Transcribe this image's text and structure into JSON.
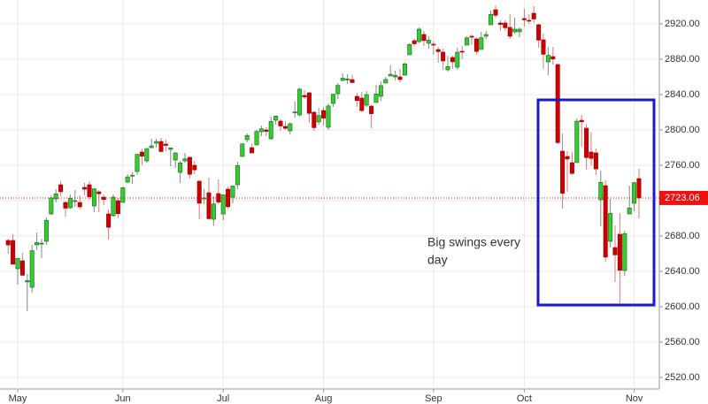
{
  "chart_data": {
    "type": "candlestick",
    "categories": [
      null,
      null,
      "May",
      null,
      null,
      null,
      null,
      null,
      null,
      null,
      null,
      null,
      null,
      null,
      null,
      null,
      null,
      null,
      null,
      null,
      null,
      null,
      null,
      null,
      "Jun",
      null,
      null,
      null,
      null,
      null,
      null,
      null,
      null,
      null,
      null,
      null,
      null,
      null,
      null,
      null,
      null,
      null,
      null,
      null,
      null,
      "Jul",
      null,
      null,
      null,
      null,
      null,
      null,
      null,
      null,
      null,
      null,
      null,
      null,
      null,
      null,
      null,
      null,
      null,
      null,
      null,
      null,
      "Aug",
      null,
      null,
      null,
      null,
      null,
      null,
      null,
      null,
      null,
      null,
      null,
      null,
      null,
      null,
      null,
      null,
      null,
      null,
      null,
      null,
      null,
      null,
      "Sep",
      null,
      null,
      null,
      null,
      null,
      null,
      null,
      null,
      null,
      null,
      null,
      null,
      null,
      null,
      null,
      null,
      null,
      null,
      "Oct",
      null,
      null,
      null,
      null,
      null,
      null,
      null,
      null,
      null,
      null,
      null,
      null,
      null,
      null,
      null,
      null,
      null,
      null,
      null,
      null,
      null,
      null,
      "Nov",
      null
    ],
    "open": [
      2675,
      2675,
      2643,
      2652,
      2628,
      2622,
      2670,
      2671,
      2674,
      2705,
      2722,
      2738,
      2718,
      2712,
      2719,
      2718,
      2735,
      2738,
      2714,
      2730,
      2724,
      2705,
      2703,
      2720,
      2718,
      2741,
      2748,
      2753,
      2775,
      2765,
      2780,
      2785,
      2787,
      2784,
      2778,
      2766,
      2752,
      2765,
      2769,
      2760,
      2742,
      2722,
      2729,
      2699,
      2728,
      2705,
      2733,
      2724,
      2738,
      2770,
      2789,
      2780,
      2783,
      2798,
      2800,
      2790,
      2811,
      2810,
      2804,
      2799,
      2820,
      2817,
      2839,
      2842,
      2820,
      2809,
      2822,
      2803,
      2830,
      2841,
      2856,
      2857,
      2857,
      2838,
      2836,
      2828,
      2827,
      2831,
      2838,
      2853,
      2861,
      2860,
      2860,
      2862,
      2885,
      2901,
      2900,
      2908,
      2898,
      2897,
      2891,
      2888,
      2868,
      2882,
      2871,
      2889,
      2896,
      2906,
      2903,
      2891,
      2906,
      2919,
      2936,
      2921,
      2921,
      2916,
      2911,
      2911,
      2926,
      2924,
      2932,
      2919,
      2902,
      2877,
      2883,
      2874,
      2776,
      2770,
      2763,
      2763,
      2811,
      2802,
      2775,
      2774,
      2721,
      2737,
      2674,
      2667,
      2682,
      2641,
      2705,
      2717,
      2745
    ],
    "high": [
      2677,
      2682,
      2655,
      2661,
      2637,
      2670,
      2684,
      2677,
      2701,
      2726,
      2733,
      2742,
      2719,
      2727,
      2732,
      2726,
      2740,
      2742,
      2734,
      2732,
      2727,
      2710,
      2727,
      2723,
      2736,
      2750,
      2752,
      2773,
      2779,
      2779,
      2790,
      2790,
      2791,
      2789,
      2780,
      2775,
      2765,
      2774,
      2770,
      2765,
      2743,
      2733,
      2746,
      2725,
      2744,
      2727,
      2736,
      2737,
      2764,
      2785,
      2796,
      2785,
      2800,
      2805,
      2803,
      2815,
      2816,
      2812,
      2810,
      2809,
      2832,
      2848,
      2845,
      2843,
      2821,
      2825,
      2826,
      2830,
      2841,
      2853,
      2864,
      2863,
      2862,
      2842,
      2843,
      2844,
      2828,
      2851,
      2855,
      2860,
      2873,
      2867,
      2869,
      2876,
      2898,
      2903,
      2916,
      2912,
      2906,
      2900,
      2894,
      2892,
      2884,
      2884,
      2893,
      2895,
      2906,
      2908,
      2905,
      2911,
      2912,
      2935,
      2941,
      2924,
      2924,
      2931,
      2927,
      2916,
      2937,
      2931,
      2940,
      2920,
      2909,
      2894,
      2894,
      2875,
      2796,
      2776,
      2775,
      2813,
      2817,
      2807,
      2797,
      2779,
      2754,
      2743,
      2722,
      2692,
      2706,
      2686,
      2737,
      2741,
      2756
    ],
    "low": [
      2660,
      2648,
      2625,
      2635,
      2595,
      2616,
      2664,
      2655,
      2670,
      2704,
      2718,
      2725,
      2702,
      2711,
      2713,
      2710,
      2726,
      2721,
      2707,
      2707,
      2715,
      2676,
      2702,
      2700,
      2718,
      2740,
      2739,
      2749,
      2760,
      2763,
      2779,
      2780,
      2775,
      2776,
      2759,
      2757,
      2740,
      2763,
      2745,
      2750,
      2699,
      2716,
      2699,
      2692,
      2716,
      2698,
      2711,
      2717,
      2733,
      2770,
      2786,
      2774,
      2783,
      2793,
      2793,
      2789,
      2806,
      2799,
      2800,
      2795,
      2814,
      2815,
      2835,
      2808,
      2799,
      2806,
      2805,
      2800,
      2826,
      2835,
      2855,
      2852,
      2853,
      2826,
      2820,
      2826,
      2802,
      2831,
      2833,
      2853,
      2861,
      2856,
      2854,
      2862,
      2885,
      2895,
      2898,
      2895,
      2892,
      2885,
      2876,
      2868,
      2866,
      2869,
      2868,
      2880,
      2896,
      2896,
      2885,
      2891,
      2903,
      2919,
      2927,
      2912,
      2912,
      2903,
      2909,
      2905,
      2917,
      2920,
      2921,
      2893,
      2869,
      2862,
      2874,
      2784,
      2711,
      2730,
      2749,
      2763,
      2781,
      2755,
      2760,
      2749,
      2691,
      2651,
      2667,
      2628,
      2604,
      2635,
      2705,
      2708,
      2700
    ],
    "close": [
      2669.9,
      2648.1,
      2654.8,
      2635.7,
      2629.7,
      2663.4,
      2672.6,
      2671.9,
      2697.8,
      2723.1,
      2727.7,
      2730.1,
      2711.5,
      2722.5,
      2720.1,
      2713.0,
      2733.0,
      2724.4,
      2733.3,
      2727.8,
      2721.3,
      2689.9,
      2724.0,
      2705.3,
      2734.6,
      2746.9,
      2748.8,
      2772.4,
      2770.4,
      2779.0,
      2782.0,
      2786.9,
      2775.6,
      2782.5,
      2779.7,
      2773.9,
      2762.6,
      2767.3,
      2749.8,
      2754.9,
      2717.1,
      2723.1,
      2699.6,
      2716.3,
      2718.4,
      2726.7,
      2713.2,
      2736.6,
      2759.8,
      2784.2,
      2793.8,
      2774.0,
      2798.3,
      2801.3,
      2798.4,
      2809.6,
      2815.6,
      2804.5,
      2801.8,
      2806.98,
      2820.4,
      2846.1,
      2837.4,
      2818.8,
      2802.6,
      2816.3,
      2813.4,
      2827.2,
      2840.4,
      2850.4,
      2858.5,
      2857.7,
      2853.6,
      2833.3,
      2821.9,
      2839.96,
      2818.4,
      2840.7,
      2850.1,
      2857.1,
      2862.96,
      2861.8,
      2856.98,
      2874.7,
      2896.7,
      2897.5,
      2914.0,
      2901.1,
      2901.5,
      2896.7,
      2888.6,
      2878.1,
      2871.7,
      2877.1,
      2887.9,
      2888.9,
      2904.2,
      2904.98,
      2888.8,
      2904.3,
      2907.95,
      2930.75,
      2929.7,
      2919.4,
      2915.6,
      2905.97,
      2914.0,
      2913.98,
      2924.6,
      2923.4,
      2925.5,
      2901.6,
      2885.6,
      2884.4,
      2880.3,
      2785.7,
      2728.4,
      2767.1,
      2750.8,
      2809.9,
      2809.2,
      2768.8,
      2767.8,
      2755.9,
      2740.7,
      2656.1,
      2705.6,
      2658.7,
      2641.3,
      2682.6,
      2711.7,
      2740.4,
      2723.06
    ],
    "up_color": "#33cc33",
    "down_color": "#cc0000",
    "last_value": 2723.06,
    "last_color": "#ee1111",
    "annotation": [
      "Big swings every",
      "day"
    ],
    "annotation_color": "#1a1acc",
    "ylim": [
      2507,
      2947
    ],
    "yticks": [
      {
        "value": 2520,
        "label": "2520.00"
      },
      {
        "value": 2560,
        "label": "2560.00"
      },
      {
        "value": 2600,
        "label": "2600.00"
      },
      {
        "value": 2640,
        "label": "2640.00"
      },
      {
        "value": 2680,
        "label": "2680.00"
      },
      {
        "value": 2720,
        "label": "2720.00"
      },
      {
        "value": 2760,
        "label": "2760.00"
      },
      {
        "value": 2800,
        "label": "2800.00"
      },
      {
        "value": 2840,
        "label": "2840.00"
      },
      {
        "value": 2880,
        "label": "2880.00"
      },
      {
        "value": 2920,
        "label": "2920.00"
      }
    ],
    "grid": true
  }
}
